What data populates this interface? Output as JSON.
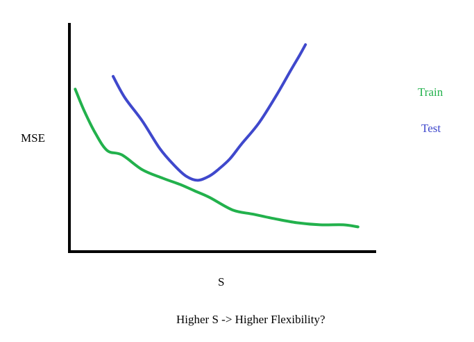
{
  "chart_data": {
    "type": "line",
    "xlabel": "S",
    "ylabel": "MSE",
    "caption": "Higher S -> Higher Flexibility?",
    "grid": false,
    "axis_style": "hand-drawn, no ticks",
    "legend_position": "right",
    "series": [
      {
        "name": "Train",
        "color": "#22b14c",
        "x": [
          0.02,
          0.05,
          0.09,
          0.13,
          0.18,
          0.25,
          0.32,
          0.38,
          0.43,
          0.48,
          0.56,
          0.63,
          0.7,
          0.78,
          0.86,
          0.94,
          0.99
        ],
        "y": [
          0.76,
          0.66,
          0.55,
          0.47,
          0.45,
          0.38,
          0.34,
          0.31,
          0.28,
          0.25,
          0.19,
          0.17,
          0.15,
          0.13,
          0.12,
          0.12,
          0.11
        ]
      },
      {
        "name": "Test",
        "color": "#3f48cc",
        "x": [
          0.15,
          0.19,
          0.25,
          0.31,
          0.36,
          0.4,
          0.44,
          0.48,
          0.51,
          0.55,
          0.59,
          0.65,
          0.71,
          0.76,
          0.79,
          0.81
        ],
        "y": [
          0.82,
          0.72,
          0.61,
          0.48,
          0.4,
          0.35,
          0.33,
          0.35,
          0.38,
          0.43,
          0.5,
          0.6,
          0.73,
          0.85,
          0.92,
          0.97
        ]
      }
    ]
  }
}
